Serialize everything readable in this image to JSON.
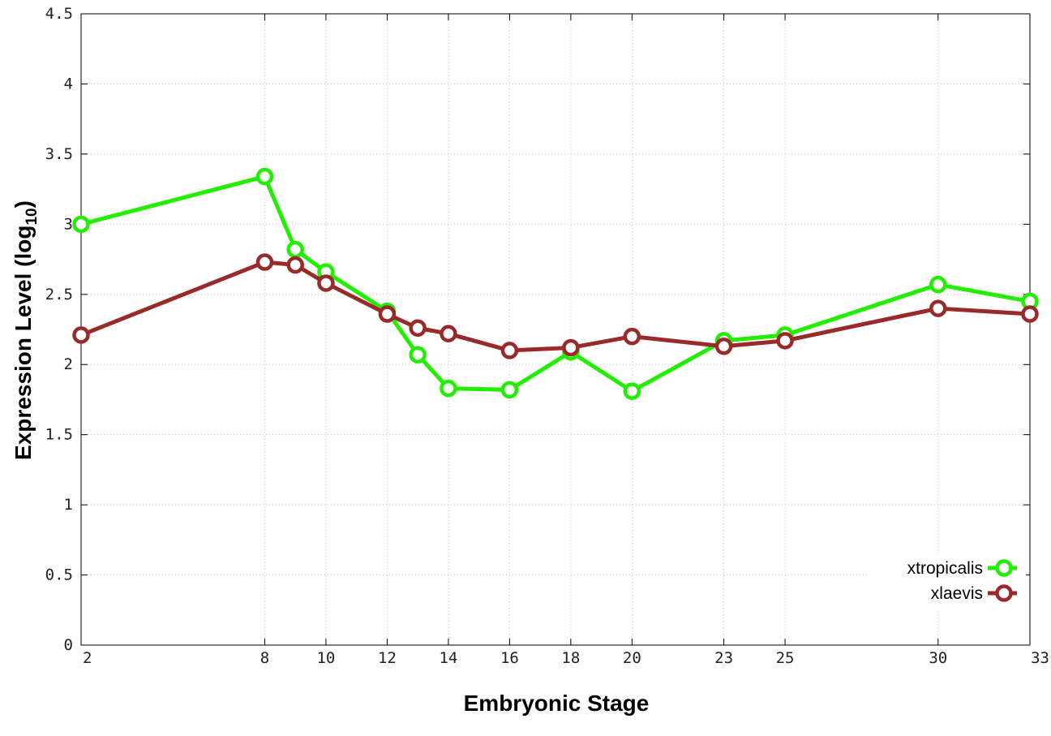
{
  "chart_data": {
    "type": "line",
    "xlabel": "Embryonic Stage",
    "ylabel_main": "Expression Level (log",
    "ylabel_sub": "10",
    "ylabel_close": ")",
    "x_ticks": [
      2,
      8,
      10,
      12,
      14,
      16,
      18,
      20,
      23,
      25,
      30,
      33
    ],
    "y_ticks": [
      0,
      0.5,
      1,
      1.5,
      2,
      2.5,
      3,
      3.5,
      4,
      4.5
    ],
    "y_tick_labels": [
      "0",
      "0.5",
      "1",
      "1.5",
      "2",
      "2.5",
      "3",
      "3.5",
      "4",
      "4.5"
    ],
    "ylim": [
      0,
      4.5
    ],
    "grid": true,
    "legend_position": "bottom-right",
    "series": [
      {
        "name": "xtropicalis",
        "color": "#22ee00",
        "x": [
          2,
          8,
          9,
          10,
          12,
          13,
          14,
          16,
          18,
          20,
          23,
          25,
          30,
          33
        ],
        "values": [
          3.0,
          3.34,
          2.82,
          2.66,
          2.38,
          2.07,
          1.83,
          1.82,
          2.09,
          1.81,
          2.17,
          2.21,
          2.57,
          2.45
        ]
      },
      {
        "name": "xlaevis",
        "color": "#992a2a",
        "x": [
          2,
          8,
          9,
          10,
          12,
          13,
          14,
          16,
          18,
          20,
          23,
          25,
          30,
          33
        ],
        "values": [
          2.21,
          2.73,
          2.71,
          2.58,
          2.36,
          2.26,
          2.22,
          2.1,
          2.12,
          2.2,
          2.13,
          2.17,
          2.4,
          2.36
        ]
      }
    ]
  }
}
